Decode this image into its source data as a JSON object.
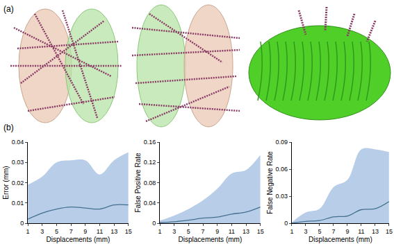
{
  "panel_labels": [
    "(a)",
    "(b)"
  ],
  "chart_data": [
    {
      "type": "line",
      "x_label": "Displacements (mm)",
      "y_label": "Error (mm)",
      "x": [
        1,
        3,
        5,
        7,
        9,
        11,
        13,
        15
      ],
      "series": [
        {
          "type": "area",
          "color": "#b7cde8",
          "values": [
            0.019,
            0.023,
            0.03,
            0.031,
            0.031,
            0.024,
            0.031,
            0.035
          ]
        },
        {
          "type": "line",
          "color": "#46708f",
          "values": [
            0.002,
            0.005,
            0.007,
            0.008,
            0.0075,
            0.007,
            0.009,
            0.009
          ]
        }
      ],
      "xlim": [
        1,
        15
      ],
      "xticks": [
        1,
        3,
        5,
        7,
        9,
        11,
        13,
        15
      ],
      "ylim": [
        0,
        0.04
      ],
      "yticks": [
        0,
        0.01,
        0.02,
        0.03,
        0.04
      ],
      "grid": false
    },
    {
      "type": "line",
      "x_label": "Displacements (mm)",
      "y_label": "False Positive Rate",
      "x": [
        1,
        3,
        5,
        7,
        9,
        11,
        13,
        15
      ],
      "series": [
        {
          "type": "area",
          "color": "#b7cde8",
          "values": [
            0.005,
            0.015,
            0.028,
            0.045,
            0.068,
            0.098,
            0.105,
            0.135
          ]
        },
        {
          "type": "line",
          "color": "#46708f",
          "values": [
            0.001,
            0.003,
            0.006,
            0.01,
            0.012,
            0.018,
            0.022,
            0.032
          ]
        }
      ],
      "xlim": [
        1,
        15
      ],
      "xticks": [
        1,
        3,
        5,
        7,
        9,
        11,
        13,
        15
      ],
      "ylim": [
        0,
        0.16
      ],
      "yticks": [
        0,
        0.04,
        0.08,
        0.12,
        0.16
      ],
      "grid": false
    },
    {
      "type": "line",
      "x_label": "Displacements (mm)",
      "y_label": "False Negative Rate",
      "x": [
        1,
        3,
        5,
        7,
        9,
        11,
        13,
        15
      ],
      "series": [
        {
          "type": "area",
          "color": "#b7cde8",
          "values": [
            0.001,
            0.012,
            0.016,
            0.04,
            0.048,
            0.082,
            0.082,
            0.079
          ]
        },
        {
          "type": "line",
          "color": "#46708f",
          "values": [
            0.0,
            0.002,
            0.003,
            0.007,
            0.008,
            0.015,
            0.016,
            0.024
          ]
        }
      ],
      "xlim": [
        1,
        15
      ],
      "xticks": [
        1,
        3,
        5,
        7,
        9,
        11,
        13,
        15
      ],
      "ylim": [
        0,
        0.09
      ],
      "yticks": [
        0,
        0.03,
        0.06,
        0.09
      ],
      "grid": false
    }
  ]
}
